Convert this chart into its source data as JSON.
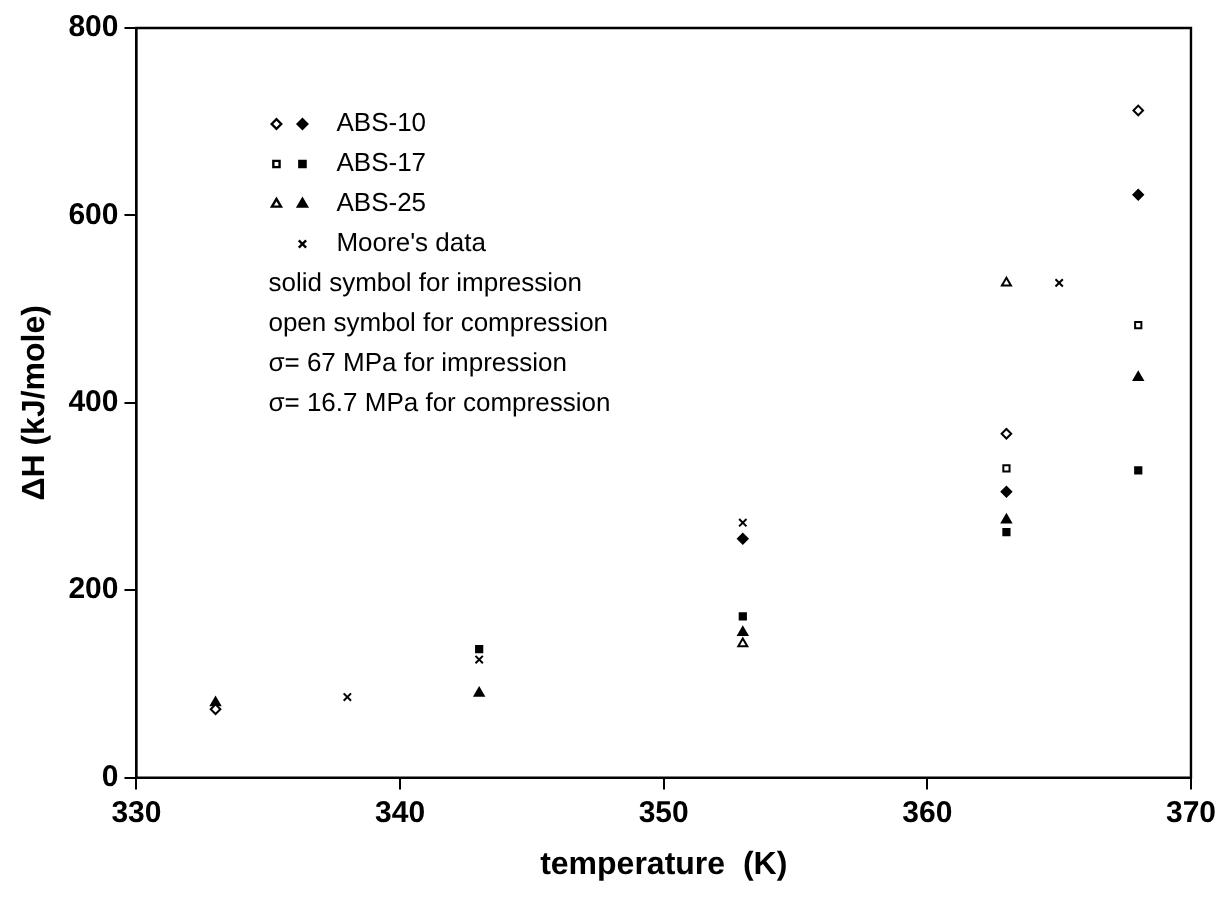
{
  "chart_data": {
    "type": "scatter",
    "xlabel": "temperature  (K)",
    "ylabel": "ΔH (kJ/mole)",
    "xlim": [
      330,
      370
    ],
    "xticks": [
      330,
      340,
      350,
      360,
      370
    ],
    "ylim": [
      0,
      800
    ],
    "yticks": [
      0,
      200,
      400,
      600,
      800
    ],
    "grid": false,
    "legend": "top left",
    "series": [
      {
        "color": "#ffffff",
        "marker": "diamond",
        "x": [
          333,
          363,
          368
        ],
        "values": [
          73,
          367,
          712
        ]
      },
      {
        "name": "ABS-10",
        "color": "#000000",
        "marker": "diamond",
        "x": [
          353,
          363,
          368
        ],
        "values": [
          255,
          305,
          622
        ]
      },
      {
        "color": "#ffffff",
        "marker": "square",
        "x": [
          363,
          368
        ],
        "values": [
          330,
          483
        ]
      },
      {
        "name": "ABS-17",
        "color": "#000000",
        "marker": "square",
        "x": [
          343,
          353,
          363,
          368
        ],
        "values": [
          137,
          172,
          262,
          328
        ]
      },
      {
        "color": "#ffffff",
        "marker": "triangle",
        "x": [
          353,
          363
        ],
        "values": [
          143,
          528
        ]
      },
      {
        "name": "ABS-25",
        "color": "#000000",
        "marker": "triangle",
        "x": [
          333,
          343,
          353,
          363,
          368
        ],
        "values": [
          80,
          90,
          155,
          275,
          427
        ]
      },
      {
        "name": "Moore's data",
        "color": "#000000",
        "marker": "cross",
        "x": [
          338,
          343,
          353,
          365
        ],
        "values": [
          86,
          126,
          272,
          528
        ]
      }
    ],
    "annotations": [
      "solid symbol for impression",
      "open symbol for compression",
      "σ= 67 MPa for impression",
      "σ= 16.7 MPa for compression"
    ]
  }
}
